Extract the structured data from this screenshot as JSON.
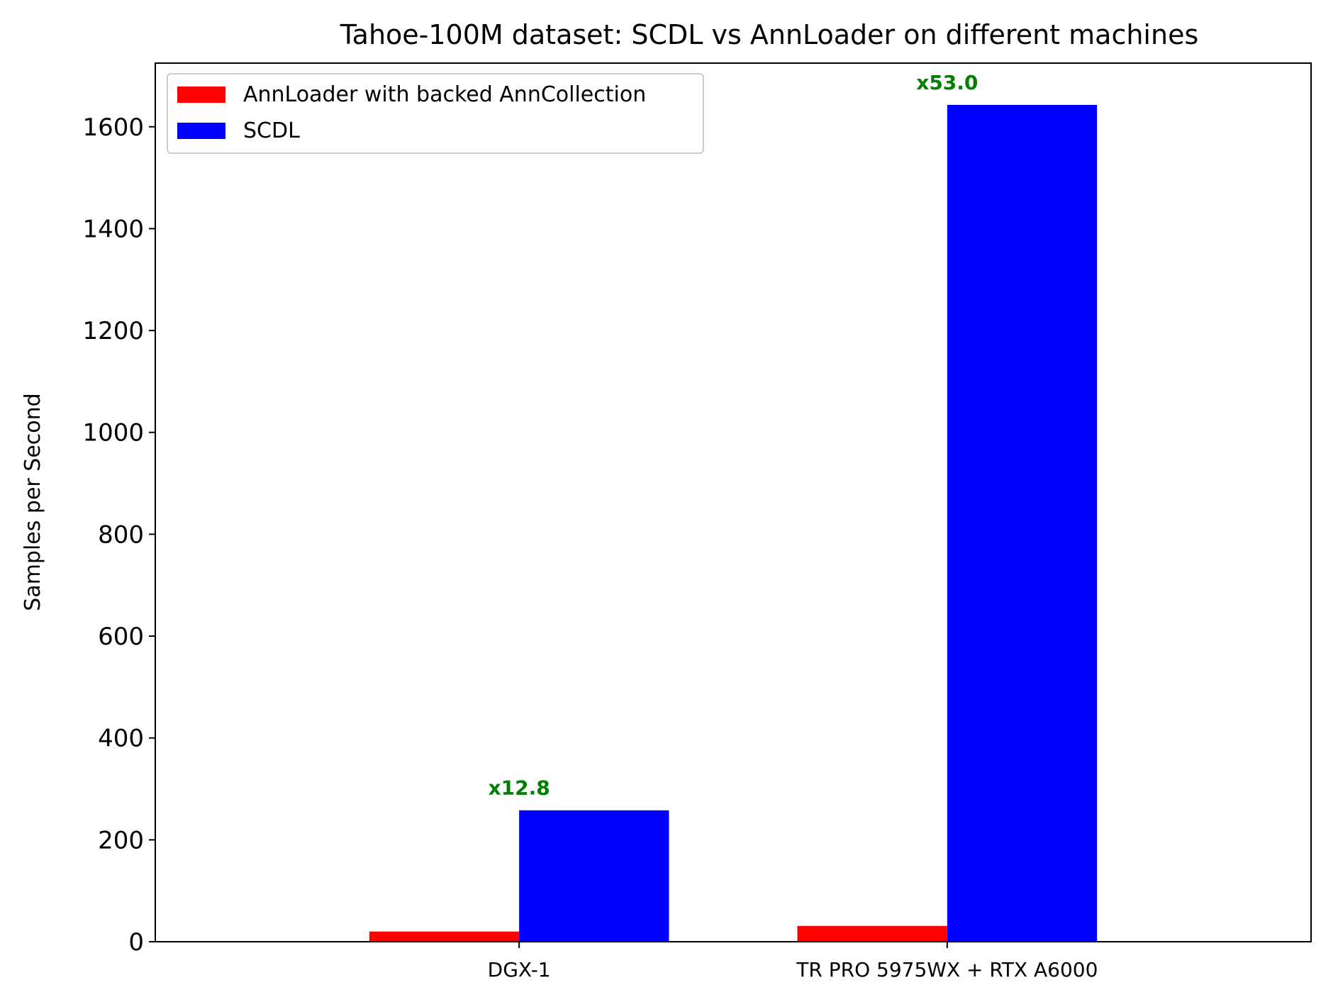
{
  "chart_data": {
    "type": "bar",
    "title": "Tahoe-100M dataset: SCDL vs AnnLoader on different machines",
    "xlabel": "",
    "ylabel": "Samples per Second",
    "categories": [
      "DGX-1",
      "TR PRO 5975WX + RTX A6000"
    ],
    "series": [
      {
        "name": "AnnLoader with backed AnnCollection",
        "color": "#ff0000",
        "values": [
          20,
          31
        ]
      },
      {
        "name": "SCDL",
        "color": "#0000ff",
        "values": [
          258,
          1643
        ]
      }
    ],
    "annotations": [
      {
        "category_index": 0,
        "text": "x12.8",
        "color": "#008000"
      },
      {
        "category_index": 1,
        "text": "x53.0",
        "color": "#008000"
      }
    ],
    "ylim": [
      0,
      1725
    ],
    "yticks": [
      0,
      200,
      400,
      600,
      800,
      1000,
      1200,
      1400,
      1600
    ],
    "grid": false,
    "legend_position": "top-left"
  }
}
